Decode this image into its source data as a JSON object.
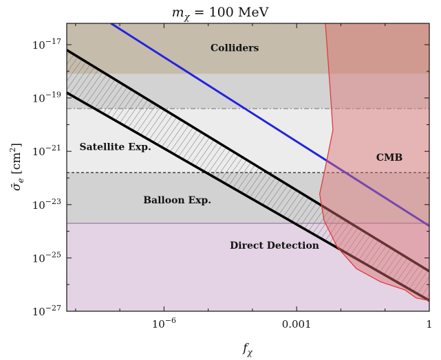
{
  "chart_data": {
    "type": "area",
    "title_var": "m",
    "title_sub": "χ",
    "title_rest": " = 100 MeV",
    "xlabel_var": "f",
    "xlabel_sub": "χ",
    "ylabel_prefix": "σ̄",
    "ylabel_sub": "e",
    "ylabel_units": " [cm",
    "ylabel_sup": "2",
    "ylabel_close": "]",
    "x_scale": "log",
    "y_scale": "log",
    "xlim_log10": [
      -8.2,
      0
    ],
    "ylim_log10": [
      -27,
      -16.2
    ],
    "x_ticks": [
      {
        "exp": -6,
        "base": "10",
        "sup": "−6"
      },
      {
        "exp": -3,
        "base": "0.001",
        "sup": ""
      },
      {
        "exp": 0,
        "base": "1",
        "sup": ""
      }
    ],
    "y_ticks": [
      {
        "exp": -17,
        "base": "10",
        "sup": "−17"
      },
      {
        "exp": -19,
        "base": "10",
        "sup": "−19"
      },
      {
        "exp": -21,
        "base": "10",
        "sup": "−21"
      },
      {
        "exp": -23,
        "base": "10",
        "sup": "−23"
      },
      {
        "exp": -25,
        "base": "10",
        "sup": "−25"
      },
      {
        "exp": -27,
        "base": "10",
        "sup": "−27"
      }
    ],
    "regions": [
      {
        "name": "Colliders",
        "y_log10": [
          -18.1,
          -16.2
        ],
        "color": "#c6bcab"
      },
      {
        "name": "Grey band",
        "y_log10": [
          -19.4,
          -18.1
        ],
        "color": "#d3d3d3"
      },
      {
        "name": "Satellite Exp.",
        "y_log10": [
          -21.8,
          -19.4
        ],
        "color": "#ececec"
      },
      {
        "name": "Balloon Exp.",
        "y_log10": [
          -23.7,
          -21.8
        ],
        "color": "#d2d2d2"
      },
      {
        "name": "Direct Detection",
        "y_log10": [
          -27,
          -23.7
        ],
        "color": "#e3d3e4"
      }
    ],
    "region_labels": [
      {
        "text": "Colliders",
        "x_log10": -4.4,
        "y_log10": -17.25
      },
      {
        "text": "Satellite Exp.",
        "x_log10": -7.1,
        "y_log10": -20.95
      },
      {
        "text": "Balloon Exp.",
        "x_log10": -5.7,
        "y_log10": -22.95
      },
      {
        "text": "Direct Detection",
        "x_log10": -3.5,
        "y_log10": -24.65
      },
      {
        "text": "CMB",
        "x_log10": -0.9,
        "y_log10": -21.35
      }
    ],
    "ref_lines": [
      {
        "y_log10": -19.4,
        "style": "dash-dot",
        "color": "#8a8a8a"
      },
      {
        "y_log10": -21.8,
        "style": "dashed",
        "color": "#222222"
      },
      {
        "y_log10": -23.7,
        "style": "solid",
        "color": "#9a7aa3"
      }
    ],
    "series": [
      {
        "name": "blue",
        "color": "#2323e0",
        "x_log10": [
          -7.2,
          0
        ],
        "y_log10": [
          -16.2,
          -23.8
        ]
      },
      {
        "name": "black upper",
        "color": "#000000",
        "x_log10": [
          -8.2,
          0
        ],
        "y_log10": [
          -17.2,
          -25.5
        ]
      },
      {
        "name": "black lower",
        "color": "#000000",
        "x_log10": [
          -8.2,
          0
        ],
        "y_log10": [
          -18.8,
          -26.6
        ]
      }
    ],
    "hatch_band": {
      "x_log10": [
        -8.2,
        0
      ],
      "upper_y_log10": [
        -17.2,
        -25.5
      ],
      "lower_y_log10": [
        -18.8,
        -26.6
      ]
    },
    "cmb": {
      "name": "CMB",
      "fill": "rgba(222,112,112,0.45)",
      "edge": "#e03a3a",
      "boundary": [
        {
          "x_log10": -2.35,
          "y_log10": -16.2
        },
        {
          "x_log10": -2.25,
          "y_log10": -18.5
        },
        {
          "x_log10": -2.18,
          "y_log10": -20.2
        },
        {
          "x_log10": -2.35,
          "y_log10": -21.6
        },
        {
          "x_log10": -2.48,
          "y_log10": -22.6
        },
        {
          "x_log10": -2.38,
          "y_log10": -23.6
        },
        {
          "x_log10": -2.08,
          "y_log10": -24.6
        },
        {
          "x_log10": -1.65,
          "y_log10": -25.4
        },
        {
          "x_log10": -1.1,
          "y_log10": -25.9
        },
        {
          "x_log10": -0.55,
          "y_log10": -26.2
        },
        {
          "x_log10": -0.3,
          "y_log10": -26.5
        },
        {
          "x_log10": 0,
          "y_log10": -26.6
        }
      ]
    }
  }
}
